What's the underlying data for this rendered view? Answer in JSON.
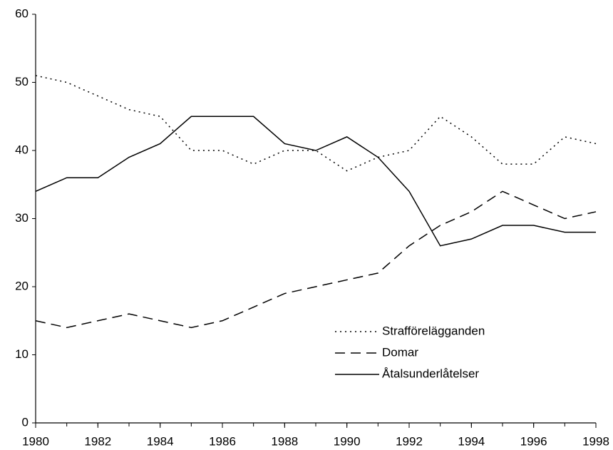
{
  "chart_data": {
    "type": "line",
    "x": [
      1980,
      1981,
      1982,
      1983,
      1984,
      1985,
      1986,
      1987,
      1988,
      1989,
      1990,
      1991,
      1992,
      1993,
      1994,
      1995,
      1996,
      1997,
      1998
    ],
    "series": [
      {
        "name": "Strafförelägganden",
        "color": "#000000",
        "style": "dotted",
        "values": [
          51,
          50,
          48,
          46,
          45,
          40,
          40,
          38,
          40,
          40,
          37,
          39,
          40,
          45,
          42,
          38,
          38,
          42,
          41
        ]
      },
      {
        "name": "Domar",
        "color": "#000000",
        "style": "dashed",
        "values": [
          15,
          14,
          15,
          16,
          15,
          14,
          15,
          17,
          19,
          20,
          21,
          22,
          26,
          29,
          31,
          34,
          32,
          30,
          31
        ]
      },
      {
        "name": "Åtalsunderlåtelser",
        "color": "#000000",
        "style": "solid",
        "values": [
          34,
          36,
          36,
          39,
          41,
          45,
          45,
          45,
          41,
          40,
          42,
          39,
          34,
          26,
          27,
          29,
          29,
          28,
          28
        ]
      }
    ],
    "xlim": [
      1980,
      1998
    ],
    "xticks": [
      1980,
      1982,
      1984,
      1986,
      1988,
      1990,
      1992,
      1994,
      1996,
      1998
    ],
    "ylim": [
      0,
      60
    ],
    "yticks": [
      0,
      10,
      20,
      30,
      40,
      50,
      60
    ],
    "legend": "lower-right",
    "grid": false
  }
}
